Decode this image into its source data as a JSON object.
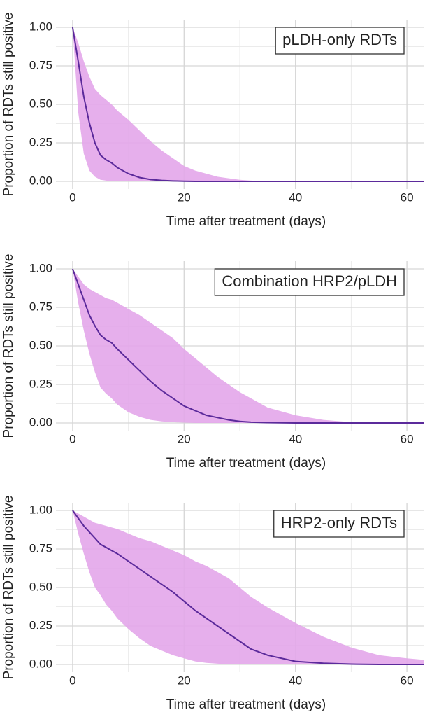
{
  "chart_data": [
    {
      "type": "line",
      "annotation": "pLDH-only RDTs",
      "xlabel": "Time after treatment (days)",
      "ylabel": "Proportion of RDTs still positive",
      "x": [
        0,
        1,
        2,
        3,
        4,
        5,
        6,
        7,
        8,
        10,
        12,
        14,
        16,
        18,
        20,
        22,
        24,
        26,
        28,
        30,
        32,
        35,
        40,
        45,
        50,
        55,
        60,
        63
      ],
      "values": [
        1,
        0.78,
        0.55,
        0.38,
        0.25,
        0.17,
        0.14,
        0.12,
        0.09,
        0.05,
        0.025,
        0.012,
        0.006,
        0.003,
        0.001,
        0,
        0,
        0,
        0,
        0,
        0,
        0,
        0,
        0,
        0,
        0,
        0,
        0
      ],
      "lower": [
        1,
        0.45,
        0.18,
        0.07,
        0.03,
        0.01,
        0.005,
        0,
        0,
        0,
        0,
        0,
        0,
        0,
        0,
        0,
        0,
        0,
        0,
        0,
        0,
        0,
        0,
        0,
        0,
        0,
        0,
        0
      ],
      "upper": [
        1,
        0.9,
        0.78,
        0.68,
        0.6,
        0.56,
        0.53,
        0.5,
        0.46,
        0.4,
        0.33,
        0.26,
        0.2,
        0.15,
        0.1,
        0.07,
        0.05,
        0.03,
        0.02,
        0.01,
        0.005,
        0,
        0,
        0,
        0,
        0,
        0,
        0
      ],
      "xlim": [
        -3,
        63
      ],
      "ylim": [
        -0.05,
        1.05
      ],
      "xticks": [
        0,
        20,
        40,
        60
      ],
      "yticks": [
        {
          "value": 0,
          "label": "0.00"
        },
        {
          "value": 0.25,
          "label": "0.25"
        },
        {
          "value": 0.5,
          "label": "0.50"
        },
        {
          "value": 0.75,
          "label": "0.75"
        },
        {
          "value": 1,
          "label": "1.00"
        }
      ],
      "x_minor_grid": [
        10,
        30,
        50
      ],
      "y_minor_grid": [
        0.125,
        0.375,
        0.625,
        0.875
      ],
      "grid": true,
      "color": "#5b2a9b",
      "band_color": "#e3a6ea"
    },
    {
      "type": "line",
      "annotation": "Combination HRP2/pLDH",
      "xlabel": "Time after treatment (days)",
      "ylabel": "Proportion of RDTs still positive",
      "x": [
        0,
        1,
        2,
        3,
        4,
        5,
        6,
        7,
        8,
        10,
        12,
        14,
        16,
        18,
        20,
        22,
        24,
        26,
        28,
        30,
        32,
        35,
        40,
        45,
        50,
        55,
        60,
        63
      ],
      "values": [
        1,
        0.9,
        0.8,
        0.7,
        0.63,
        0.57,
        0.54,
        0.52,
        0.48,
        0.41,
        0.34,
        0.27,
        0.21,
        0.16,
        0.11,
        0.08,
        0.05,
        0.035,
        0.02,
        0.01,
        0.005,
        0.002,
        0,
        0,
        0,
        0,
        0,
        0
      ],
      "lower": [
        1,
        0.78,
        0.6,
        0.45,
        0.33,
        0.23,
        0.19,
        0.16,
        0.12,
        0.07,
        0.04,
        0.02,
        0.01,
        0.005,
        0.002,
        0,
        0,
        0,
        0,
        0,
        0,
        0,
        0,
        0,
        0,
        0,
        0,
        0
      ],
      "upper": [
        1,
        0.95,
        0.9,
        0.87,
        0.85,
        0.83,
        0.81,
        0.8,
        0.78,
        0.74,
        0.7,
        0.65,
        0.6,
        0.55,
        0.48,
        0.42,
        0.36,
        0.3,
        0.25,
        0.2,
        0.16,
        0.1,
        0.05,
        0.02,
        0.005,
        0,
        0,
        0
      ],
      "xlim": [
        -3,
        63
      ],
      "ylim": [
        -0.05,
        1.05
      ],
      "xticks": [
        0,
        20,
        40,
        60
      ],
      "yticks": [
        {
          "value": 0,
          "label": "0.00"
        },
        {
          "value": 0.25,
          "label": "0.25"
        },
        {
          "value": 0.5,
          "label": "0.50"
        },
        {
          "value": 0.75,
          "label": "0.75"
        },
        {
          "value": 1,
          "label": "1.00"
        }
      ],
      "x_minor_grid": [
        10,
        30,
        50
      ],
      "y_minor_grid": [
        0.125,
        0.375,
        0.625,
        0.875
      ],
      "grid": true,
      "color": "#5b2a9b",
      "band_color": "#e3a6ea"
    },
    {
      "type": "line",
      "annotation": "HRP2-only RDTs",
      "xlabel": "Time after treatment (days)",
      "ylabel": "Proportion of RDTs still positive",
      "x": [
        0,
        1,
        2,
        3,
        4,
        5,
        6,
        7,
        8,
        10,
        12,
        14,
        16,
        18,
        20,
        22,
        24,
        26,
        28,
        30,
        32,
        35,
        40,
        45,
        50,
        55,
        60,
        63
      ],
      "values": [
        1,
        0.95,
        0.9,
        0.86,
        0.82,
        0.78,
        0.76,
        0.74,
        0.72,
        0.67,
        0.62,
        0.57,
        0.52,
        0.47,
        0.41,
        0.35,
        0.3,
        0.25,
        0.2,
        0.15,
        0.1,
        0.06,
        0.02,
        0.008,
        0.002,
        0,
        0,
        0
      ],
      "lower": [
        1,
        0.85,
        0.72,
        0.6,
        0.5,
        0.45,
        0.39,
        0.35,
        0.3,
        0.23,
        0.17,
        0.12,
        0.09,
        0.06,
        0.04,
        0.02,
        0.01,
        0.005,
        0.002,
        0,
        0,
        0,
        0,
        0,
        0,
        0,
        0,
        0
      ],
      "upper": [
        1,
        0.98,
        0.96,
        0.94,
        0.92,
        0.91,
        0.9,
        0.89,
        0.88,
        0.85,
        0.82,
        0.8,
        0.77,
        0.74,
        0.71,
        0.67,
        0.64,
        0.6,
        0.56,
        0.5,
        0.44,
        0.37,
        0.27,
        0.18,
        0.11,
        0.06,
        0.04,
        0.03
      ],
      "xlim": [
        -3,
        63
      ],
      "ylim": [
        -0.05,
        1.05
      ],
      "xticks": [
        0,
        20,
        40,
        60
      ],
      "yticks": [
        {
          "value": 0,
          "label": "0.00"
        },
        {
          "value": 0.25,
          "label": "0.25"
        },
        {
          "value": 0.5,
          "label": "0.50"
        },
        {
          "value": 0.75,
          "label": "0.75"
        },
        {
          "value": 1,
          "label": "1.00"
        }
      ],
      "x_minor_grid": [
        10,
        30,
        50
      ],
      "y_minor_grid": [
        0.125,
        0.375,
        0.625,
        0.875
      ],
      "grid": true,
      "color": "#5b2a9b",
      "band_color": "#e3a6ea"
    }
  ]
}
